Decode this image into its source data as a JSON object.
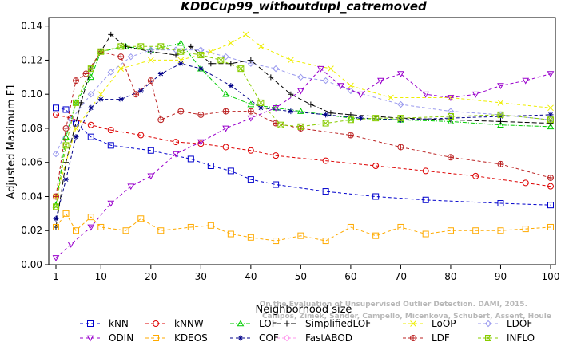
{
  "chart_data": {
    "type": "line",
    "title": "KDDCup99_withoutdupl_catremoved",
    "xlabel": "Neighborhood size",
    "ylabel": "Adjusted Maximum F1",
    "xlim": [
      1,
      100
    ],
    "ylim": [
      0,
      0.145
    ],
    "xticks": [
      1,
      10,
      20,
      30,
      40,
      50,
      60,
      70,
      80,
      90,
      100
    ],
    "yticks": [
      0.0,
      0.02,
      0.04,
      0.06,
      0.08,
      0.1,
      0.12,
      0.14
    ],
    "grid": false,
    "legend_position": "bottom",
    "watermark": [
      "Campos, Zimek, Sander, Campello, Micenkova, Schubert, Assent, Houle",
      "On the Evaluation of Unsupervised Outlier Detection. DAMI, 2015."
    ],
    "series": [
      {
        "name": "kNN",
        "color": "#0000cc",
        "marker": "square",
        "dash": "4,3",
        "points": [
          [
            1,
            0.092
          ],
          [
            3,
            0.091
          ],
          [
            5,
            0.083
          ],
          [
            8,
            0.075
          ],
          [
            12,
            0.07
          ],
          [
            20,
            0.067
          ],
          [
            28,
            0.062
          ],
          [
            32,
            0.058
          ],
          [
            36,
            0.055
          ],
          [
            40,
            0.05
          ],
          [
            45,
            0.047
          ],
          [
            55,
            0.043
          ],
          [
            65,
            0.04
          ],
          [
            75,
            0.038
          ],
          [
            90,
            0.036
          ],
          [
            100,
            0.035
          ]
        ]
      },
      {
        "name": "kNNW",
        "color": "#dd0000",
        "marker": "circle",
        "dash": "4,3",
        "points": [
          [
            1,
            0.088
          ],
          [
            4,
            0.086
          ],
          [
            8,
            0.082
          ],
          [
            12,
            0.079
          ],
          [
            18,
            0.076
          ],
          [
            25,
            0.072
          ],
          [
            30,
            0.071
          ],
          [
            35,
            0.069
          ],
          [
            40,
            0.067
          ],
          [
            45,
            0.064
          ],
          [
            55,
            0.061
          ],
          [
            65,
            0.058
          ],
          [
            75,
            0.055
          ],
          [
            85,
            0.052
          ],
          [
            95,
            0.048
          ],
          [
            100,
            0.046
          ]
        ]
      },
      {
        "name": "LOF",
        "color": "#00cc00",
        "marker": "triangle",
        "dash": "5,2,1,2",
        "points": [
          [
            1,
            0.035
          ],
          [
            3,
            0.075
          ],
          [
            5,
            0.095
          ],
          [
            8,
            0.11
          ],
          [
            10,
            0.125
          ],
          [
            15,
            0.128
          ],
          [
            20,
            0.126
          ],
          [
            26,
            0.13
          ],
          [
            30,
            0.115
          ],
          [
            35,
            0.1
          ],
          [
            40,
            0.094
          ],
          [
            45,
            0.092
          ],
          [
            50,
            0.09
          ],
          [
            60,
            0.086
          ],
          [
            70,
            0.085
          ],
          [
            80,
            0.084
          ],
          [
            90,
            0.082
          ],
          [
            100,
            0.081
          ]
        ]
      },
      {
        "name": "SimplifiedLOF",
        "color": "#000000",
        "marker": "plus",
        "dash": "6,3",
        "points": [
          [
            1,
            0.022
          ],
          [
            3,
            0.06
          ],
          [
            6,
            0.095
          ],
          [
            8,
            0.115
          ],
          [
            12,
            0.135
          ],
          [
            15,
            0.128
          ],
          [
            20,
            0.125
          ],
          [
            25,
            0.123
          ],
          [
            28,
            0.128
          ],
          [
            32,
            0.118
          ],
          [
            36,
            0.118
          ],
          [
            40,
            0.12
          ],
          [
            44,
            0.11
          ],
          [
            48,
            0.1
          ],
          [
            52,
            0.094
          ],
          [
            56,
            0.089
          ],
          [
            60,
            0.088
          ],
          [
            70,
            0.086
          ],
          [
            80,
            0.085
          ],
          [
            90,
            0.084
          ],
          [
            100,
            0.083
          ]
        ]
      },
      {
        "name": "LoOP",
        "color": "#eeee00",
        "marker": "x",
        "dash": "4,3",
        "points": [
          [
            1,
            0.04
          ],
          [
            5,
            0.08
          ],
          [
            10,
            0.1
          ],
          [
            14,
            0.115
          ],
          [
            20,
            0.12
          ],
          [
            26,
            0.12
          ],
          [
            32,
            0.125
          ],
          [
            36,
            0.13
          ],
          [
            39,
            0.135
          ],
          [
            42,
            0.128
          ],
          [
            48,
            0.12
          ],
          [
            56,
            0.115
          ],
          [
            60,
            0.105
          ],
          [
            68,
            0.098
          ],
          [
            80,
            0.098
          ],
          [
            90,
            0.095
          ],
          [
            100,
            0.092
          ]
        ]
      },
      {
        "name": "LDOF",
        "color": "#9999ee",
        "marker": "diamond",
        "dash": "4,3",
        "points": [
          [
            1,
            0.065
          ],
          [
            4,
            0.085
          ],
          [
            8,
            0.1
          ],
          [
            12,
            0.113
          ],
          [
            16,
            0.122
          ],
          [
            20,
            0.126
          ],
          [
            25,
            0.126
          ],
          [
            30,
            0.126
          ],
          [
            35,
            0.122
          ],
          [
            40,
            0.118
          ],
          [
            45,
            0.115
          ],
          [
            50,
            0.11
          ],
          [
            55,
            0.108
          ],
          [
            60,
            0.102
          ],
          [
            70,
            0.094
          ],
          [
            80,
            0.09
          ],
          [
            90,
            0.088
          ],
          [
            100,
            0.085
          ]
        ]
      },
      {
        "name": "ODIN",
        "color": "#9900cc",
        "marker": "triangle-down",
        "dash": "4,3",
        "points": [
          [
            1,
            0.004
          ],
          [
            4,
            0.012
          ],
          [
            8,
            0.022
          ],
          [
            12,
            0.036
          ],
          [
            16,
            0.046
          ],
          [
            20,
            0.052
          ],
          [
            25,
            0.065
          ],
          [
            30,
            0.072
          ],
          [
            35,
            0.08
          ],
          [
            40,
            0.086
          ],
          [
            45,
            0.092
          ],
          [
            50,
            0.102
          ],
          [
            54,
            0.115
          ],
          [
            58,
            0.105
          ],
          [
            62,
            0.1
          ],
          [
            66,
            0.108
          ],
          [
            70,
            0.112
          ],
          [
            75,
            0.1
          ],
          [
            80,
            0.098
          ],
          [
            85,
            0.1
          ],
          [
            90,
            0.105
          ],
          [
            95,
            0.108
          ],
          [
            100,
            0.112
          ]
        ]
      },
      {
        "name": "KDEOS",
        "color": "#ffaa00",
        "marker": "square",
        "dash": "4,3",
        "points": [
          [
            1,
            0.022
          ],
          [
            3,
            0.03
          ],
          [
            5,
            0.02
          ],
          [
            8,
            0.028
          ],
          [
            10,
            0.022
          ],
          [
            15,
            0.02
          ],
          [
            18,
            0.027
          ],
          [
            22,
            0.02
          ],
          [
            28,
            0.022
          ],
          [
            32,
            0.023
          ],
          [
            36,
            0.018
          ],
          [
            40,
            0.016
          ],
          [
            45,
            0.014
          ],
          [
            50,
            0.017
          ],
          [
            55,
            0.014
          ],
          [
            60,
            0.022
          ],
          [
            65,
            0.017
          ],
          [
            70,
            0.022
          ],
          [
            75,
            0.018
          ],
          [
            80,
            0.02
          ],
          [
            85,
            0.02
          ],
          [
            90,
            0.02
          ],
          [
            95,
            0.021
          ],
          [
            100,
            0.022
          ]
        ]
      },
      {
        "name": "COF",
        "color": "#000088",
        "marker": "asterisk",
        "dash": "4,3",
        "points": [
          [
            1,
            0.027
          ],
          [
            3,
            0.05
          ],
          [
            5,
            0.075
          ],
          [
            8,
            0.092
          ],
          [
            10,
            0.097
          ],
          [
            14,
            0.097
          ],
          [
            18,
            0.102
          ],
          [
            22,
            0.112
          ],
          [
            26,
            0.118
          ],
          [
            30,
            0.115
          ],
          [
            36,
            0.105
          ],
          [
            42,
            0.092
          ],
          [
            48,
            0.09
          ],
          [
            55,
            0.088
          ],
          [
            62,
            0.086
          ],
          [
            70,
            0.085
          ],
          [
            80,
            0.086
          ],
          [
            90,
            0.087
          ],
          [
            100,
            0.088
          ]
        ]
      },
      {
        "name": "FastABOD",
        "color": "#ff99ee",
        "marker": "diamond",
        "dash": "4,3",
        "points": []
      },
      {
        "name": "LDF",
        "color": "#bb2222",
        "marker": "circle-plus",
        "dash": "4,3",
        "points": [
          [
            1,
            0.04
          ],
          [
            3,
            0.08
          ],
          [
            5,
            0.108
          ],
          [
            7,
            0.112
          ],
          [
            10,
            0.125
          ],
          [
            14,
            0.122
          ],
          [
            17,
            0.1
          ],
          [
            20,
            0.108
          ],
          [
            22,
            0.085
          ],
          [
            26,
            0.09
          ],
          [
            30,
            0.088
          ],
          [
            35,
            0.09
          ],
          [
            40,
            0.09
          ],
          [
            45,
            0.083
          ],
          [
            50,
            0.08
          ],
          [
            60,
            0.076
          ],
          [
            70,
            0.069
          ],
          [
            80,
            0.063
          ],
          [
            90,
            0.059
          ],
          [
            100,
            0.051
          ]
        ]
      },
      {
        "name": "INFLO",
        "color": "#88cc00",
        "marker": "square-x",
        "dash": "4,3",
        "points": [
          [
            1,
            0.034
          ],
          [
            3,
            0.07
          ],
          [
            5,
            0.095
          ],
          [
            8,
            0.115
          ],
          [
            10,
            0.125
          ],
          [
            14,
            0.128
          ],
          [
            18,
            0.128
          ],
          [
            22,
            0.128
          ],
          [
            26,
            0.125
          ],
          [
            30,
            0.123
          ],
          [
            34,
            0.12
          ],
          [
            38,
            0.115
          ],
          [
            42,
            0.095
          ],
          [
            46,
            0.082
          ],
          [
            50,
            0.081
          ],
          [
            55,
            0.083
          ],
          [
            60,
            0.085
          ],
          [
            65,
            0.086
          ],
          [
            70,
            0.086
          ],
          [
            80,
            0.087
          ],
          [
            90,
            0.088
          ],
          [
            100,
            0.085
          ]
        ]
      }
    ]
  }
}
